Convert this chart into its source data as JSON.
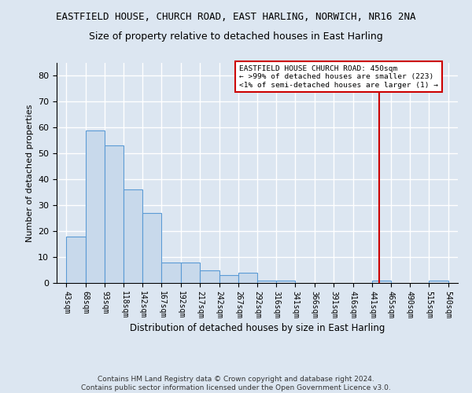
{
  "title": "EASTFIELD HOUSE, CHURCH ROAD, EAST HARLING, NORWICH, NR16 2NA",
  "subtitle": "Size of property relative to detached houses in East Harling",
  "xlabel": "Distribution of detached houses by size in East Harling",
  "ylabel": "Number of detached properties",
  "bar_color": "#c8d9eb",
  "bar_edge_color": "#5b9bd5",
  "background_color": "#dce6f1",
  "bins": [
    43,
    68,
    93,
    118,
    142,
    167,
    192,
    217,
    242,
    267,
    292,
    316,
    341,
    366,
    391,
    416,
    441,
    465,
    490,
    515,
    540
  ],
  "counts": [
    18,
    59,
    53,
    36,
    27,
    8,
    8,
    5,
    3,
    4,
    1,
    1,
    0,
    0,
    0,
    0,
    1,
    0,
    0,
    1,
    0
  ],
  "tick_labels": [
    "43sqm",
    "68sqm",
    "93sqm",
    "118sqm",
    "142sqm",
    "167sqm",
    "192sqm",
    "217sqm",
    "242sqm",
    "267sqm",
    "292sqm",
    "316sqm",
    "341sqm",
    "366sqm",
    "391sqm",
    "416sqm",
    "441sqm",
    "465sqm",
    "490sqm",
    "515sqm",
    "540sqm"
  ],
  "vline_x": 450,
  "vline_color": "#cc0000",
  "annotation_text": "EASTFIELD HOUSE CHURCH ROAD: 450sqm\n← >99% of detached houses are smaller (223)\n<1% of semi-detached houses are larger (1) →",
  "annotation_box_color": "#cc0000",
  "ylim": [
    0,
    85
  ],
  "yticks": [
    0,
    10,
    20,
    30,
    40,
    50,
    60,
    70,
    80
  ],
  "footer": "Contains HM Land Registry data © Crown copyright and database right 2024.\nContains public sector information licensed under the Open Government Licence v3.0.",
  "grid_color": "#ffffff",
  "title_fontsize": 9,
  "subtitle_fontsize": 9,
  "xlabel_fontsize": 8.5,
  "ylabel_fontsize": 8,
  "tick_fontsize": 7,
  "footer_fontsize": 6.5
}
